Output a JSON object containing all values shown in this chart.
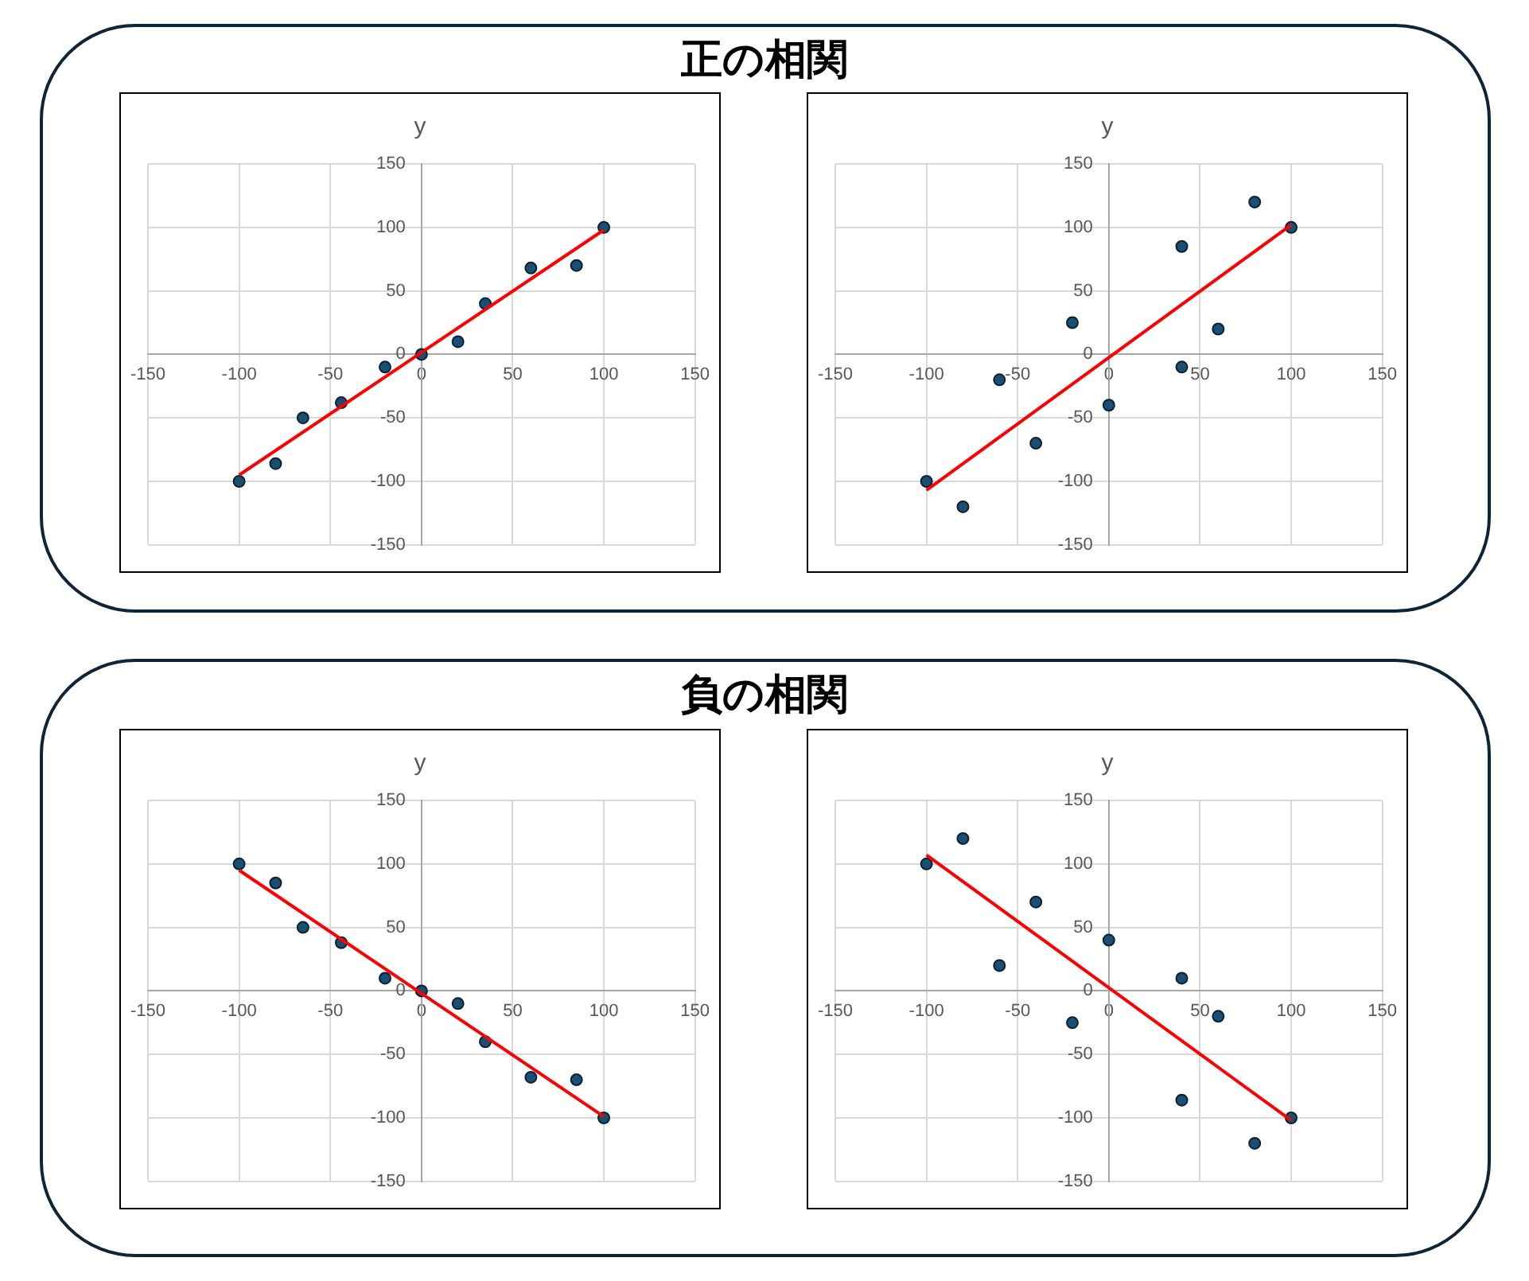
{
  "chart_data": [
    {
      "type": "scatter",
      "title": "y",
      "annotations": [
        "正の相関"
      ],
      "xlim": [
        -150,
        150
      ],
      "ylim": [
        -150,
        150
      ],
      "xticks": [
        -150,
        -100,
        -50,
        0,
        50,
        100,
        150
      ],
      "yticks": [
        -150,
        -100,
        -50,
        0,
        50,
        100,
        150
      ],
      "grid": true,
      "legend": false,
      "series": [
        {
          "marker": "circle",
          "color": "#1b4f72",
          "x": [
            -100,
            -80,
            -65,
            -44,
            -20,
            0,
            20,
            35,
            60,
            85,
            100
          ],
          "values": [
            -100,
            -86,
            -50,
            -38,
            -10,
            0,
            10,
            40,
            68,
            70,
            100
          ]
        },
        {
          "type": "line",
          "color": "#ff0000",
          "line_style": "solid",
          "x": [
            -100,
            100
          ],
          "values": [
            -95,
            98
          ]
        }
      ]
    },
    {
      "type": "scatter",
      "title": "y",
      "xlim": [
        -150,
        150
      ],
      "ylim": [
        -150,
        150
      ],
      "xticks": [
        -150,
        -100,
        -50,
        0,
        50,
        100,
        150
      ],
      "yticks": [
        -150,
        -100,
        -50,
        0,
        50,
        100,
        150
      ],
      "grid": true,
      "legend": false,
      "series": [
        {
          "marker": "circle",
          "color": "#1b4f72",
          "x": [
            -100,
            -80,
            -60,
            -40,
            -20,
            0,
            40,
            40,
            60,
            80,
            100
          ],
          "values": [
            -100,
            -120,
            -20,
            -70,
            25,
            -40,
            85,
            -10,
            20,
            120,
            100
          ]
        },
        {
          "type": "line",
          "color": "#ff0000",
          "line_style": "solid",
          "x": [
            -100,
            100
          ],
          "values": [
            -107,
            102
          ]
        }
      ]
    },
    {
      "type": "scatter",
      "title": "y",
      "annotations": [
        "負の相関"
      ],
      "xlim": [
        -150,
        150
      ],
      "ylim": [
        -150,
        150
      ],
      "xticks": [
        -150,
        -100,
        -50,
        0,
        50,
        100,
        150
      ],
      "yticks": [
        -150,
        -100,
        -50,
        0,
        50,
        100,
        150
      ],
      "grid": true,
      "legend": false,
      "series": [
        {
          "marker": "circle",
          "color": "#1b4f72",
          "x": [
            -100,
            -80,
            -65,
            -44,
            -20,
            0,
            20,
            35,
            60,
            85,
            100
          ],
          "values": [
            100,
            85,
            50,
            38,
            10,
            0,
            -10,
            -40,
            -68,
            -70,
            -100
          ]
        },
        {
          "type": "line",
          "color": "#ff0000",
          "line_style": "solid",
          "x": [
            -100,
            100
          ],
          "values": [
            95,
            -99
          ]
        }
      ]
    },
    {
      "type": "scatter",
      "title": "y",
      "xlim": [
        -150,
        150
      ],
      "ylim": [
        -150,
        150
      ],
      "xticks": [
        -150,
        -100,
        -50,
        0,
        50,
        100,
        150
      ],
      "yticks": [
        -150,
        -100,
        -50,
        0,
        50,
        100,
        150
      ],
      "grid": true,
      "legend": false,
      "series": [
        {
          "marker": "circle",
          "color": "#1b4f72",
          "x": [
            -100,
            -80,
            -60,
            -40,
            -20,
            0,
            40,
            40,
            60,
            80,
            100
          ],
          "values": [
            100,
            120,
            20,
            70,
            -25,
            40,
            10,
            -86,
            -20,
            -120,
            -100
          ]
        },
        {
          "type": "line",
          "color": "#ff0000",
          "line_style": "solid",
          "x": [
            -100,
            100
          ],
          "values": [
            107,
            -102
          ]
        }
      ]
    }
  ]
}
